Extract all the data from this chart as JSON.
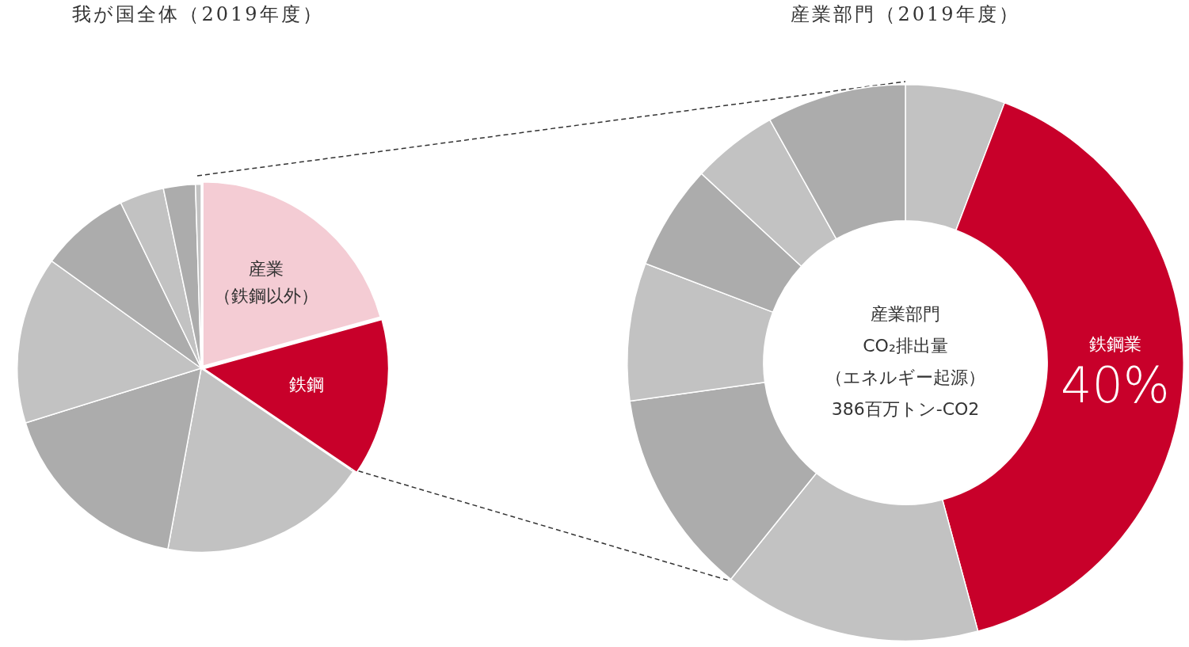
{
  "chart_data": [
    {
      "type": "pie",
      "title": "我が国全体（2019年度）",
      "categories": [
        "産業（鉄鋼以外）",
        "鉄鋼",
        null,
        null,
        null,
        null,
        null,
        null,
        null
      ],
      "values": [
        20.7,
        13.8,
        18.4,
        17.3,
        14.7,
        7.9,
        3.9,
        2.8,
        0.5
      ],
      "colors": [
        "#f4ccd4",
        "#c8002a",
        "#c2c2c2",
        "#acacac",
        "#c2c2c2",
        "#acacac",
        "#c2c2c2",
        "#acacac",
        "#c2c2c2"
      ],
      "legend": false
    },
    {
      "type": "donut",
      "title": "産業部門（2019年度）",
      "categories": [
        null,
        "鉄鋼業",
        null,
        null,
        null,
        null,
        null,
        null
      ],
      "values": [
        5.8,
        40,
        15,
        12,
        8,
        6.1,
        5,
        8.1
      ],
      "value_labels": [
        null,
        "40%",
        null,
        null,
        null,
        null,
        null,
        null
      ],
      "colors": [
        "#c2c2c2",
        "#c8002a",
        "#c2c2c2",
        "#acacac",
        "#c2c2c2",
        "#acacac",
        "#c2c2c2",
        "#acacac"
      ],
      "annotations": [
        "産業部門",
        "CO₂排出量",
        "（エネルギー起源）",
        "386百万トン-CO2"
      ],
      "legend": false
    }
  ]
}
